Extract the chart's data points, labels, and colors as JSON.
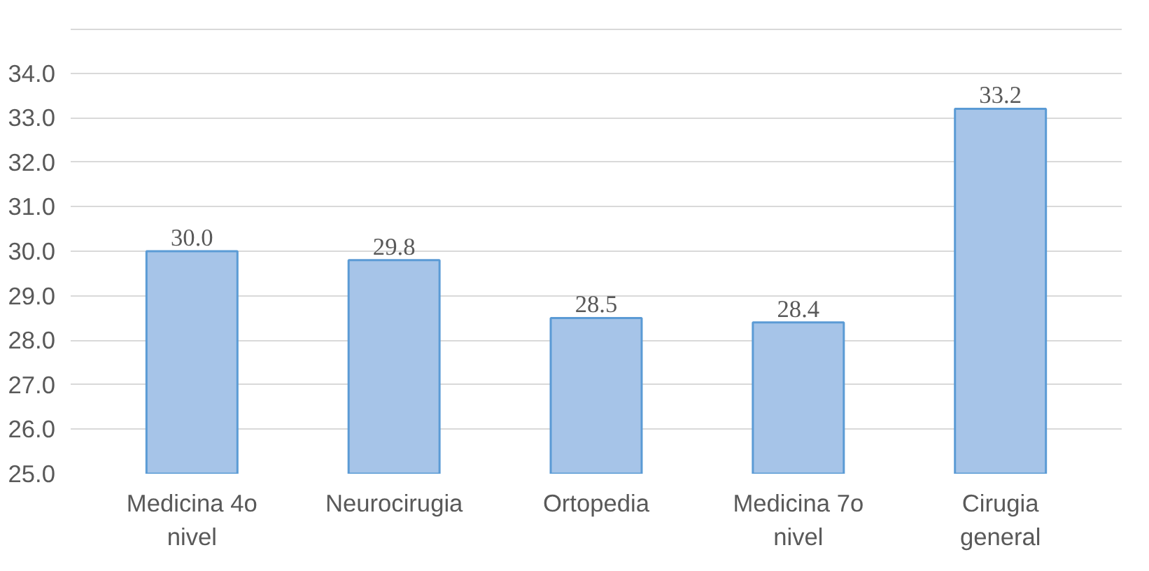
{
  "chart_data": {
    "type": "bar",
    "categories": [
      "Medicina 4o\nnivel",
      "Neurocirugia",
      "Ortopedia",
      "Medicina 7o\nnivel",
      "Cirugia\ngeneral"
    ],
    "values": [
      30.0,
      29.8,
      28.5,
      28.4,
      33.2
    ],
    "value_labels": [
      "30.0",
      "29.8",
      "28.5",
      "28.4",
      "33.2"
    ],
    "color": "#a6c4e8",
    "ylim": [
      25,
      35
    ],
    "yticks": [
      {
        "value": 25,
        "label": "25.0"
      },
      {
        "value": 26,
        "label": "26.0"
      },
      {
        "value": 27,
        "label": "27.0"
      },
      {
        "value": 28,
        "label": "28.0"
      },
      {
        "value": 29,
        "label": "29.0"
      },
      {
        "value": 30,
        "label": "30.0"
      },
      {
        "value": 31,
        "label": "31.0"
      },
      {
        "value": 32,
        "label": "32.0"
      },
      {
        "value": 33,
        "label": "33.0"
      },
      {
        "value": 34,
        "label": "34.0"
      },
      {
        "value": 35,
        "label": null
      }
    ],
    "grid": "y"
  }
}
